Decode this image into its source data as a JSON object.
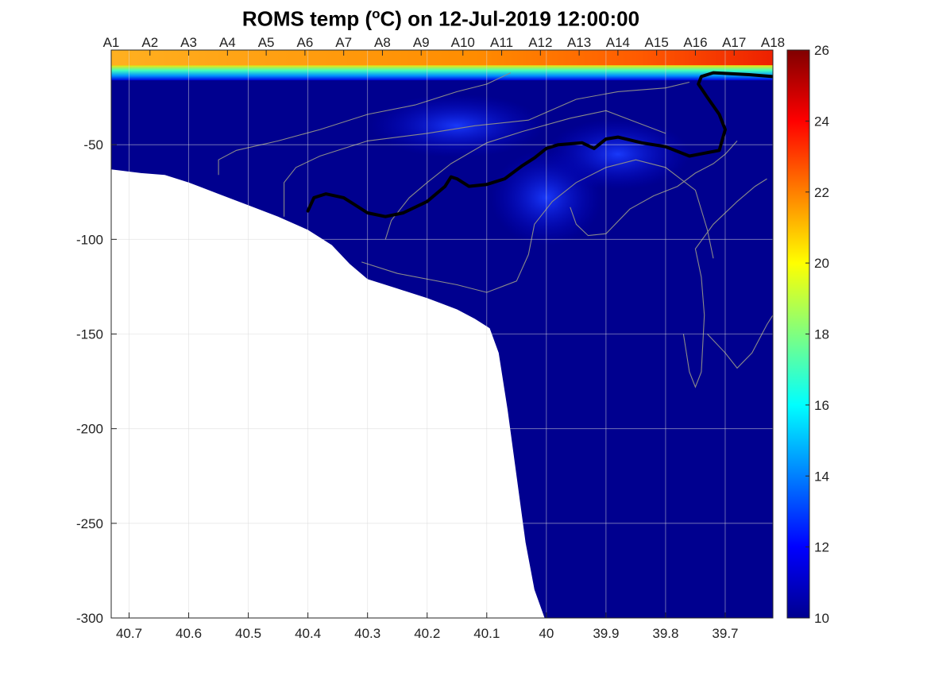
{
  "chart_data": {
    "type": "heatmap",
    "title": {
      "prefix": "ROMS temp (",
      "superscript": "o",
      "unit_suffix": "C) on ",
      "datetime": "12-Jul-2019 12:00:00"
    },
    "xlabel": "",
    "ylabel": "",
    "x_axis": {
      "reversed": true,
      "range": [
        40.73,
        39.62
      ],
      "ticks": [
        40.7,
        40.6,
        40.5,
        40.4,
        40.3,
        40.2,
        40.1,
        40,
        39.9,
        39.8,
        39.7
      ],
      "tick_labels": [
        "40.7",
        "40.6",
        "40.5",
        "40.4",
        "40.3",
        "40.2",
        "40.1",
        "40",
        "39.9",
        "39.8",
        "39.7"
      ]
    },
    "y_axis": {
      "range": [
        -300,
        0
      ],
      "ticks": [
        -300,
        -250,
        -200,
        -150,
        -100,
        -50
      ],
      "tick_labels": [
        "-300",
        "-250",
        "-200",
        "-150",
        "-100",
        "-50"
      ]
    },
    "station_axis": {
      "position": "top",
      "stations": [
        {
          "name": "A1",
          "x": 40.73
        },
        {
          "name": "A2",
          "x": 40.665
        },
        {
          "name": "A3",
          "x": 40.6
        },
        {
          "name": "A4",
          "x": 40.535
        },
        {
          "name": "A5",
          "x": 40.47
        },
        {
          "name": "A6",
          "x": 40.405
        },
        {
          "name": "A7",
          "x": 40.34
        },
        {
          "name": "A8",
          "x": 40.275
        },
        {
          "name": "A9",
          "x": 40.21
        },
        {
          "name": "A10",
          "x": 40.14
        },
        {
          "name": "A11",
          "x": 40.075
        },
        {
          "name": "A12",
          "x": 40.01
        },
        {
          "name": "A13",
          "x": 39.945
        },
        {
          "name": "A14",
          "x": 39.88
        },
        {
          "name": "A15",
          "x": 39.815
        },
        {
          "name": "A16",
          "x": 39.75
        },
        {
          "name": "A17",
          "x": 39.685
        },
        {
          "name": "A18",
          "x": 39.62
        }
      ]
    },
    "colorbar": {
      "min": 10,
      "max": 26,
      "ticks": [
        10,
        12,
        14,
        16,
        18,
        20,
        22,
        24,
        26
      ],
      "tick_labels": [
        "10",
        "12",
        "14",
        "16",
        "18",
        "20",
        "22",
        "24",
        "26"
      ],
      "colormap": "jet"
    },
    "grid": true,
    "field": {
      "description_values": {
        "surface_layer_temp_C": {
          "west": 21.5,
          "east": 24.5
        },
        "thermocline_temp_C": 15,
        "mid_depth_temp_C": 11.5,
        "deep_temp_C": 10
      },
      "surface_layer_depth_m": [
        0,
        -8
      ],
      "thermocline_depth_m": [
        -8,
        -14
      ]
    },
    "bathymetry": [
      [
        40.73,
        -63
      ],
      [
        40.68,
        -65
      ],
      [
        40.64,
        -66
      ],
      [
        40.6,
        -70
      ],
      [
        40.55,
        -76
      ],
      [
        40.5,
        -82
      ],
      [
        40.45,
        -88
      ],
      [
        40.4,
        -95
      ],
      [
        40.36,
        -103
      ],
      [
        40.33,
        -113
      ],
      [
        40.3,
        -121
      ],
      [
        40.25,
        -126
      ],
      [
        40.2,
        -131
      ],
      [
        40.15,
        -137
      ],
      [
        40.12,
        -142
      ],
      [
        40.095,
        -147
      ],
      [
        40.08,
        -160
      ],
      [
        40.065,
        -190
      ],
      [
        40.05,
        -225
      ],
      [
        40.035,
        -260
      ],
      [
        40.02,
        -285
      ],
      [
        40.003,
        -300
      ]
    ],
    "highlight_contour": {
      "line_color": "#000000",
      "points": [
        [
          40.4,
          -85
        ],
        [
          40.39,
          -78
        ],
        [
          40.37,
          -76
        ],
        [
          40.34,
          -78
        ],
        [
          40.3,
          -86
        ],
        [
          40.27,
          -88
        ],
        [
          40.24,
          -86
        ],
        [
          40.2,
          -80
        ],
        [
          40.17,
          -72
        ],
        [
          40.16,
          -67
        ],
        [
          40.15,
          -68
        ],
        [
          40.13,
          -72
        ],
        [
          40.1,
          -71
        ],
        [
          40.07,
          -68
        ],
        [
          40.04,
          -61
        ],
        [
          40.02,
          -57
        ],
        [
          40.0,
          -52
        ],
        [
          39.98,
          -50
        ],
        [
          39.94,
          -49
        ],
        [
          39.92,
          -52
        ],
        [
          39.9,
          -47
        ],
        [
          39.88,
          -46
        ],
        [
          39.84,
          -49
        ],
        [
          39.8,
          -51
        ],
        [
          39.76,
          -56
        ],
        [
          39.71,
          -53
        ],
        [
          39.7,
          -42
        ],
        [
          39.71,
          -34
        ],
        [
          39.73,
          -25
        ],
        [
          39.745,
          -18
        ],
        [
          39.74,
          -14
        ],
        [
          39.72,
          -12
        ],
        [
          39.66,
          -13
        ],
        [
          39.62,
          -14
        ]
      ]
    },
    "thin_contours": {
      "line_color": "#8a8a8a",
      "lines": [
        [
          [
            40.55,
            -66
          ],
          [
            40.55,
            -58
          ],
          [
            40.52,
            -53
          ],
          [
            40.45,
            -48
          ],
          [
            40.38,
            -42
          ],
          [
            40.3,
            -34
          ],
          [
            40.22,
            -29
          ],
          [
            40.15,
            -22
          ],
          [
            40.1,
            -18
          ],
          [
            40.06,
            -12
          ]
        ],
        [
          [
            40.44,
            -88
          ],
          [
            40.44,
            -70
          ],
          [
            40.42,
            -62
          ],
          [
            40.38,
            -56
          ],
          [
            40.3,
            -48
          ],
          [
            40.2,
            -44
          ],
          [
            40.12,
            -40
          ],
          [
            40.03,
            -37
          ],
          [
            39.95,
            -26
          ],
          [
            39.88,
            -22
          ],
          [
            39.8,
            -20
          ],
          [
            39.76,
            -17
          ]
        ],
        [
          [
            40.27,
            -100
          ],
          [
            40.26,
            -90
          ],
          [
            40.23,
            -78
          ],
          [
            40.2,
            -70
          ],
          [
            40.16,
            -60
          ],
          [
            40.1,
            -49
          ],
          [
            40.04,
            -43
          ],
          [
            39.96,
            -36
          ],
          [
            39.9,
            -32
          ],
          [
            39.85,
            -38
          ],
          [
            39.8,
            -44
          ]
        ],
        [
          [
            40.31,
            -112
          ],
          [
            40.25,
            -118
          ],
          [
            40.15,
            -124
          ],
          [
            40.1,
            -128
          ],
          [
            40.05,
            -122
          ],
          [
            40.03,
            -108
          ],
          [
            40.02,
            -92
          ],
          [
            39.99,
            -80
          ],
          [
            39.95,
            -70
          ],
          [
            39.9,
            -62
          ],
          [
            39.85,
            -58
          ],
          [
            39.8,
            -62
          ],
          [
            39.75,
            -74
          ],
          [
            39.73,
            -95
          ],
          [
            39.72,
            -110
          ]
        ],
        [
          [
            39.96,
            -83
          ],
          [
            39.95,
            -92
          ],
          [
            39.93,
            -98
          ],
          [
            39.9,
            -97
          ],
          [
            39.86,
            -84
          ],
          [
            39.82,
            -77
          ],
          [
            39.78,
            -72
          ],
          [
            39.75,
            -65
          ],
          [
            39.72,
            -60
          ],
          [
            39.7,
            -55
          ],
          [
            39.68,
            -48
          ]
        ],
        [
          [
            39.77,
            -150
          ],
          [
            39.76,
            -170
          ],
          [
            39.75,
            -178
          ],
          [
            39.74,
            -170
          ],
          [
            39.735,
            -140
          ],
          [
            39.74,
            -120
          ],
          [
            39.75,
            -105
          ],
          [
            39.72,
            -92
          ],
          [
            39.68,
            -80
          ],
          [
            39.65,
            -72
          ],
          [
            39.63,
            -68
          ]
        ],
        [
          [
            39.73,
            -150
          ],
          [
            39.7,
            -160
          ],
          [
            39.68,
            -168
          ],
          [
            39.655,
            -160
          ],
          [
            39.63,
            -145
          ],
          [
            39.62,
            -140
          ]
        ]
      ]
    }
  }
}
